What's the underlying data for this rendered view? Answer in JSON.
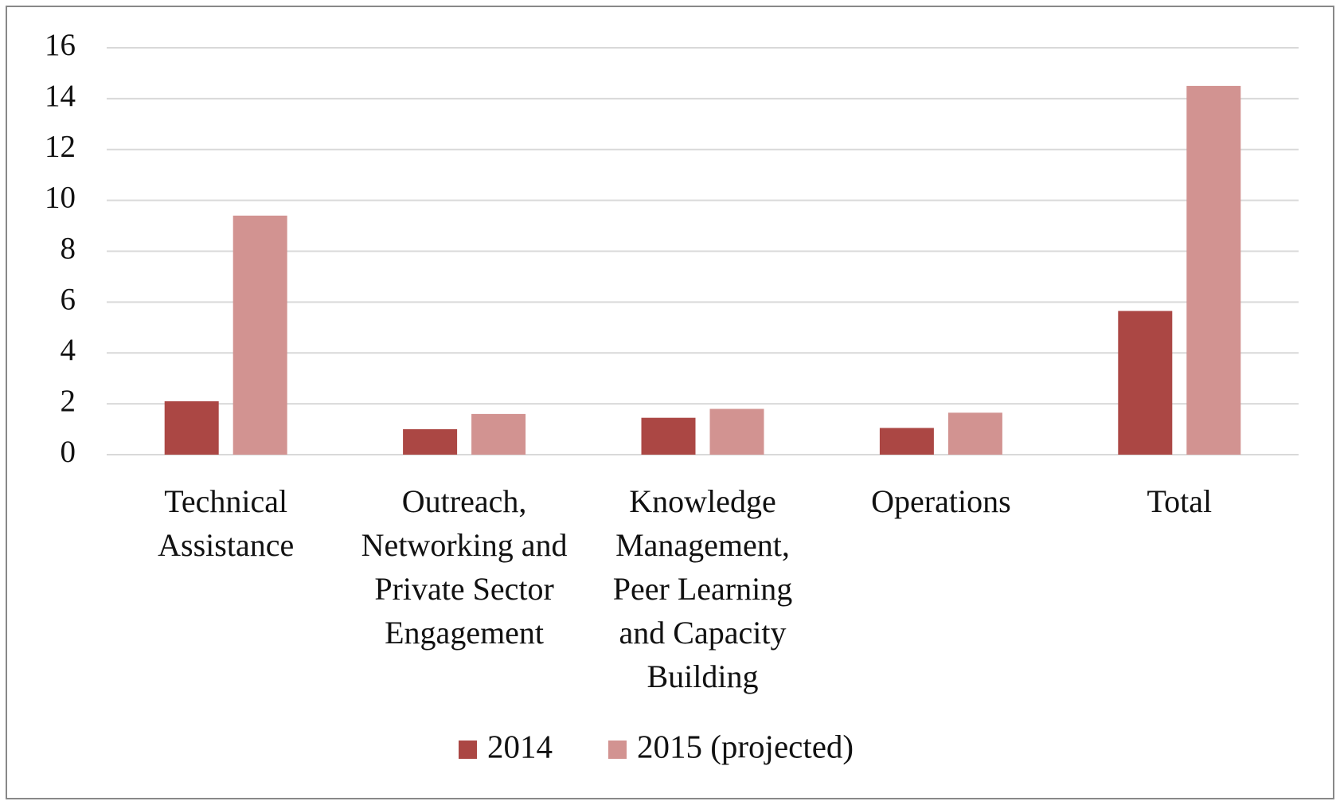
{
  "chart_data": {
    "type": "bar",
    "categories": [
      "Technical Assistance",
      "Outreach, Networking and Private Sector Engagement",
      "Knowledge Management, Peer Learning and Capacity Building",
      "Operations",
      "Total"
    ],
    "series": [
      {
        "name": "2014",
        "color": "#ab4744",
        "values": [
          2.1,
          1.0,
          1.45,
          1.05,
          5.65
        ]
      },
      {
        "name": "2015 (projected)",
        "color": "#d29391",
        "values": [
          9.4,
          1.6,
          1.8,
          1.65,
          14.5
        ]
      }
    ],
    "ylim": [
      0,
      16
    ],
    "yticks": [
      0,
      2,
      4,
      6,
      8,
      10,
      12,
      14,
      16
    ],
    "grid": true,
    "legend": "bottom"
  }
}
